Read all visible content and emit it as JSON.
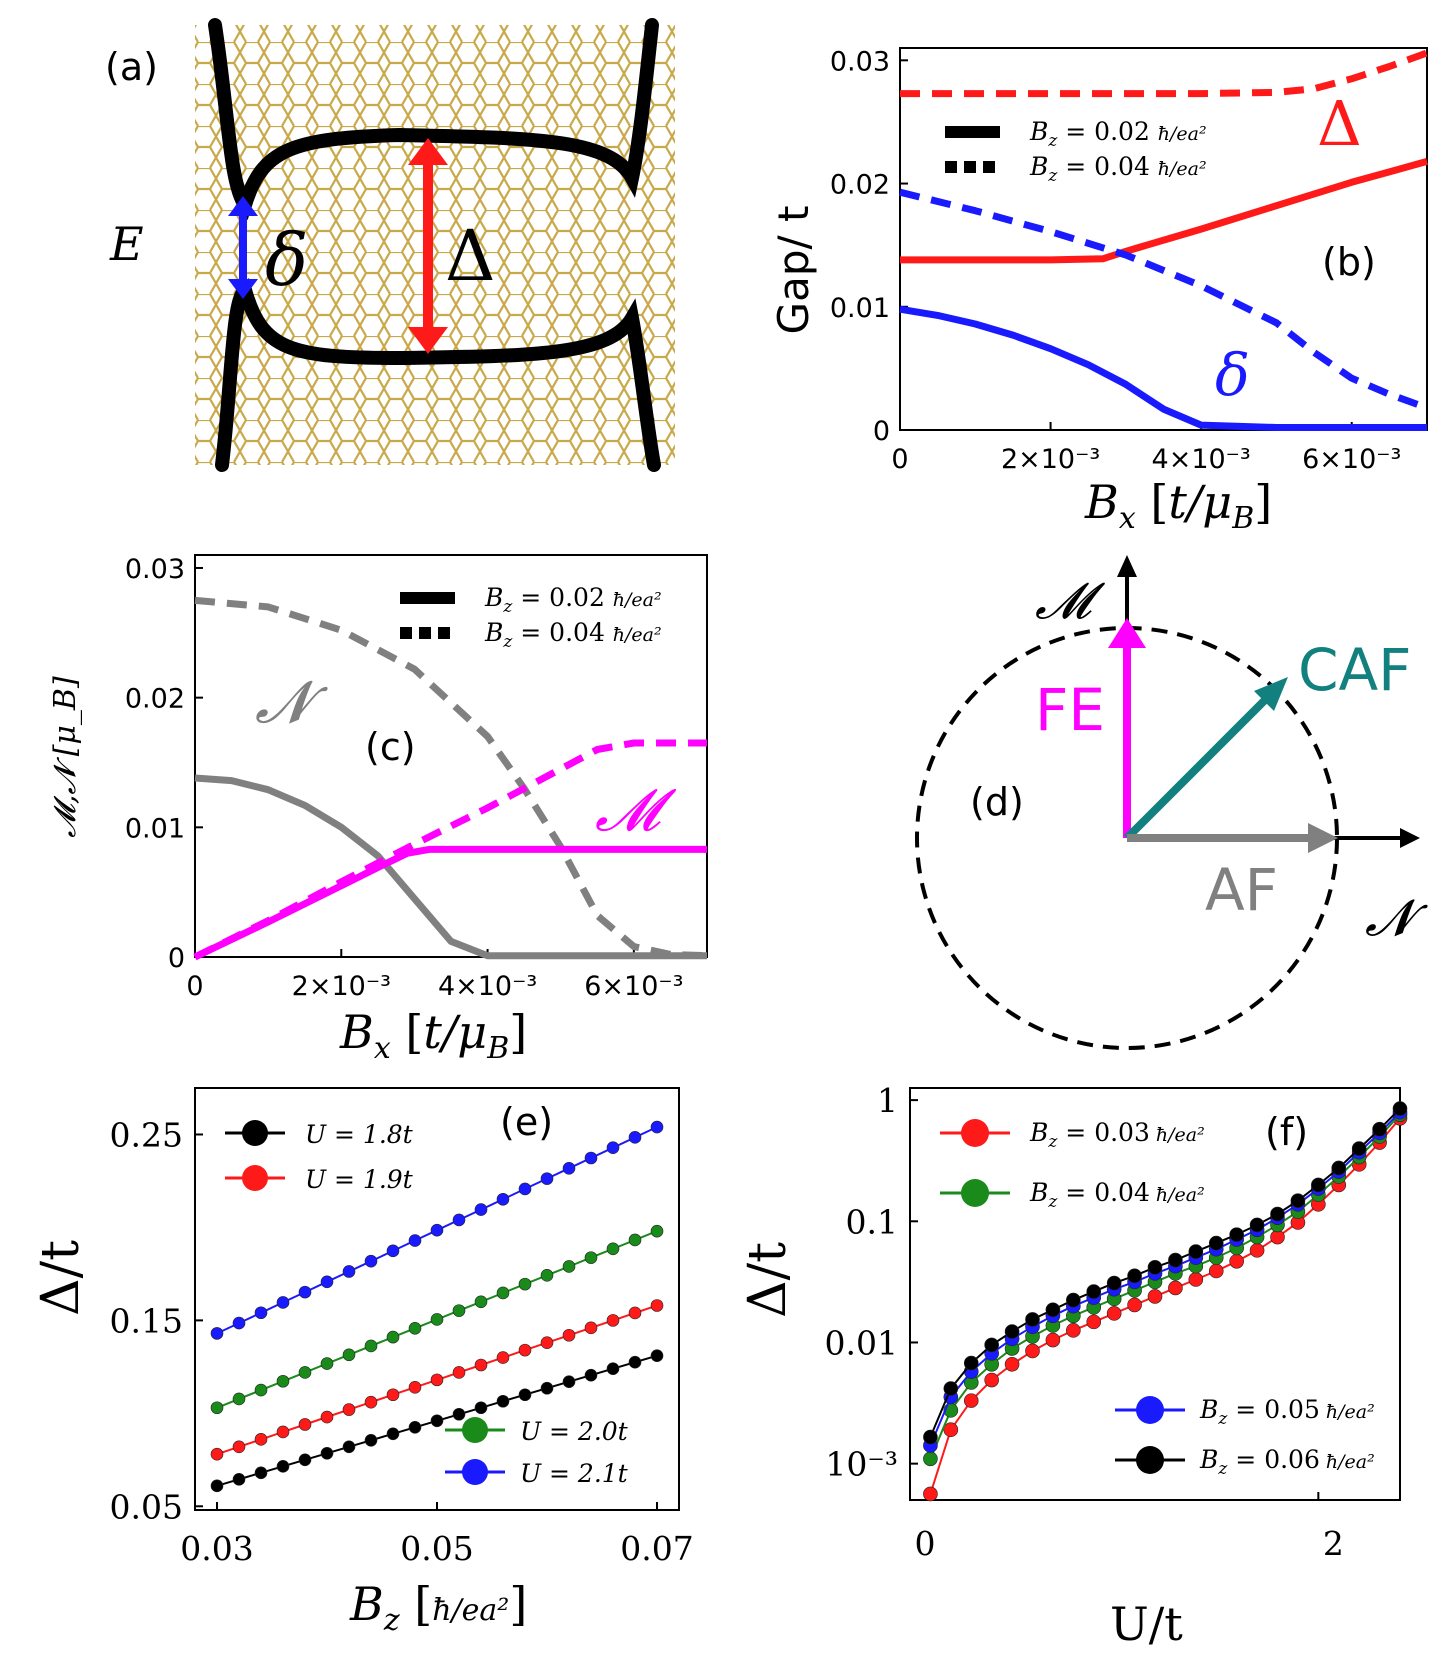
{
  "colors": {
    "red": "#ff1a1a",
    "blue": "#1a1aff",
    "gray": "#808080",
    "magenta": "#ff00ff",
    "green": "#1a8a1a",
    "teal": "#138080",
    "black": "#000000",
    "lattice": "#c9a84a"
  },
  "panel_labels": {
    "a": "(a)",
    "b": "(b)",
    "c": "(c)",
    "d": "(d)",
    "e": "(e)",
    "f": "(f)"
  },
  "chart_data": [
    {
      "panel": "(a)",
      "type": "diagram",
      "ylabel": "E",
      "annotations": [
        "δ",
        "Δ"
      ]
    },
    {
      "panel": "(b)",
      "type": "line",
      "xlabel": "B_x [t/μ_B]",
      "ylabel": "Gap/ t",
      "xlim": [
        0,
        0.007
      ],
      "ylim": [
        0,
        0.031
      ],
      "xticks": [
        "0",
        "2×10⁻³",
        "4×10⁻³",
        "6×10⁻³"
      ],
      "yticks": [
        "0",
        "0.01",
        "0.02",
        "0.03"
      ],
      "legend": [
        "B_z = 0.02 ħ/ea²",
        "B_z = 0.04 ħ/ea²"
      ],
      "annotations": [
        "Δ",
        "δ"
      ],
      "series": [
        {
          "name": "Δ, B_z=0.02",
          "style": "solid",
          "color": "red",
          "x": [
            0,
            0.001,
            0.002,
            0.0027,
            0.003,
            0.004,
            0.005,
            0.006,
            0.007
          ],
          "y": [
            0.0138,
            0.0138,
            0.0138,
            0.0139,
            0.0145,
            0.0163,
            0.0182,
            0.0201,
            0.0218
          ]
        },
        {
          "name": "Δ, B_z=0.04",
          "style": "dashed",
          "color": "red",
          "x": [
            0,
            0.001,
            0.002,
            0.003,
            0.004,
            0.005,
            0.0055,
            0.006,
            0.0065,
            0.007
          ],
          "y": [
            0.0273,
            0.0273,
            0.0273,
            0.0273,
            0.0273,
            0.0274,
            0.0277,
            0.0285,
            0.0295,
            0.0306
          ]
        },
        {
          "name": "δ, B_z=0.02",
          "style": "solid",
          "color": "blue",
          "x": [
            0,
            0.0005,
            0.001,
            0.0015,
            0.002,
            0.0025,
            0.003,
            0.0035,
            0.004,
            0.005,
            0.006,
            0.007
          ],
          "y": [
            0.0098,
            0.0093,
            0.0086,
            0.0077,
            0.0066,
            0.0053,
            0.0037,
            0.0017,
            0.0004,
            0.0002,
            0.0002,
            0.0002
          ]
        },
        {
          "name": "δ, B_z=0.04",
          "style": "dashed",
          "color": "blue",
          "x": [
            0,
            0.001,
            0.002,
            0.003,
            0.004,
            0.005,
            0.0055,
            0.006,
            0.0065,
            0.007
          ],
          "y": [
            0.0193,
            0.0178,
            0.0161,
            0.0142,
            0.0117,
            0.0087,
            0.0063,
            0.0042,
            0.0029,
            0.0018
          ]
        }
      ]
    },
    {
      "panel": "(c)",
      "type": "line",
      "xlabel": "B_x [t/μ_B]",
      "ylabel": "𝓜,𝓝 [μ_B]",
      "xlim": [
        0,
        0.007
      ],
      "ylim": [
        0,
        0.031
      ],
      "xticks": [
        "0",
        "2×10⁻³",
        "4×10⁻³",
        "6×10⁻³"
      ],
      "yticks": [
        "0",
        "0.01",
        "0.02",
        "0.03"
      ],
      "legend": [
        "B_z = 0.02 ħ/ea²",
        "B_z = 0.04 ħ/ea²"
      ],
      "annotations": [
        "𝓝",
        "𝓜"
      ],
      "series": [
        {
          "name": "N, B_z=0.02",
          "style": "solid",
          "color": "gray",
          "x": [
            0,
            0.0005,
            0.001,
            0.0015,
            0.002,
            0.0025,
            0.003,
            0.0035,
            0.004,
            0.005,
            0.006,
            0.007
          ],
          "y": [
            0.0138,
            0.0136,
            0.0129,
            0.0117,
            0.01,
            0.0078,
            0.0045,
            0.0012,
            0.0001,
            0.0001,
            0.0001,
            0.0001
          ]
        },
        {
          "name": "N, B_z=0.04",
          "style": "dashed",
          "color": "gray",
          "x": [
            0,
            0.001,
            0.002,
            0.003,
            0.004,
            0.0045,
            0.005,
            0.0055,
            0.006,
            0.0065,
            0.007
          ],
          "y": [
            0.0275,
            0.027,
            0.0252,
            0.0222,
            0.017,
            0.013,
            0.0085,
            0.0032,
            0.0008,
            0.0002,
            0.0001
          ]
        },
        {
          "name": "M, B_z=0.02",
          "style": "solid",
          "color": "magenta",
          "x": [
            0,
            0.001,
            0.002,
            0.0025,
            0.0029,
            0.0032,
            0.004,
            0.005,
            0.006,
            0.007
          ],
          "y": [
            0,
            0.0027,
            0.0055,
            0.0069,
            0.008,
            0.0083,
            0.0083,
            0.0083,
            0.0083,
            0.0083
          ]
        },
        {
          "name": "M, B_z=0.04",
          "style": "dashed",
          "color": "magenta",
          "x": [
            0,
            0.001,
            0.002,
            0.003,
            0.004,
            0.005,
            0.0055,
            0.006,
            0.0065,
            0.007
          ],
          "y": [
            0,
            0.0028,
            0.0058,
            0.0087,
            0.0115,
            0.0145,
            0.016,
            0.0165,
            0.0165,
            0.0165
          ]
        }
      ]
    },
    {
      "panel": "(d)",
      "type": "diagram",
      "axes": [
        "𝓜",
        "𝓝"
      ],
      "vectors": [
        "FE",
        "CAF",
        "AF"
      ]
    },
    {
      "panel": "(e)",
      "type": "line",
      "xlabel": "B_z [ħ/ea²]",
      "ylabel": "Δ/t",
      "xlim": [
        0.028,
        0.072
      ],
      "ylim": [
        0.048,
        0.275
      ],
      "xticks": [
        "0.03",
        "0.05",
        "0.07"
      ],
      "yticks": [
        "0.05",
        "0.15",
        "0.25"
      ],
      "series": [
        {
          "name": "U = 1.8t",
          "color": "black",
          "x_start": 0.03,
          "x_end": 0.07,
          "n": 21,
          "y_start": 0.061,
          "y_end": 0.131
        },
        {
          "name": "U = 1.9t",
          "color": "red",
          "x_start": 0.03,
          "x_end": 0.07,
          "n": 21,
          "y_start": 0.078,
          "y_end": 0.158
        },
        {
          "name": "U = 2.0t",
          "color": "green",
          "x_start": 0.03,
          "x_end": 0.07,
          "n": 21,
          "y_start": 0.103,
          "y_end": 0.198
        },
        {
          "name": "U = 2.1t",
          "color": "blue",
          "x_start": 0.03,
          "x_end": 0.07,
          "n": 21,
          "y_start": 0.143,
          "y_end": 0.254
        }
      ]
    },
    {
      "panel": "(f)",
      "type": "line",
      "scale": "log-y",
      "xlabel": "U/t",
      "ylabel": "Δ/t",
      "xlim": [
        0,
        2.4
      ],
      "ylim_log10": [
        -3.3,
        0.1
      ],
      "xticks": [
        "0",
        "2"
      ],
      "yticks": [
        "10⁻³",
        "0.01",
        "0.1",
        "1"
      ],
      "series": [
        {
          "name": "B_z = 0.03 ħ/ea²",
          "color": "red",
          "x": [
            0.1,
            0.2,
            0.3,
            0.4,
            0.5,
            0.6,
            0.7,
            0.8,
            0.9,
            1.0,
            1.1,
            1.2,
            1.3,
            1.4,
            1.5,
            1.6,
            1.7,
            1.8,
            1.9,
            2.0,
            2.1,
            2.2,
            2.3,
            2.4
          ],
          "log10y": [
            -3.25,
            -2.72,
            -2.48,
            -2.31,
            -2.18,
            -2.07,
            -1.98,
            -1.9,
            -1.83,
            -1.76,
            -1.69,
            -1.62,
            -1.55,
            -1.48,
            -1.41,
            -1.33,
            -1.24,
            -1.13,
            -1.01,
            -0.86,
            -0.7,
            -0.53,
            -0.35,
            -0.15
          ]
        },
        {
          "name": "B_z = 0.04 ħ/ea²",
          "color": "green",
          "x": [
            0.1,
            0.2,
            0.3,
            0.4,
            0.5,
            0.6,
            0.7,
            0.8,
            0.9,
            1.0,
            1.1,
            1.2,
            1.3,
            1.4,
            1.5,
            1.6,
            1.7,
            1.8,
            1.9,
            2.0,
            2.1,
            2.2,
            2.3,
            2.4
          ],
          "log10y": [
            -2.96,
            -2.56,
            -2.33,
            -2.18,
            -2.05,
            -1.95,
            -1.86,
            -1.78,
            -1.71,
            -1.64,
            -1.57,
            -1.5,
            -1.43,
            -1.37,
            -1.3,
            -1.22,
            -1.13,
            -1.03,
            -0.92,
            -0.78,
            -0.63,
            -0.47,
            -0.3,
            -0.12
          ]
        },
        {
          "name": "B_z = 0.05 ħ/ea²",
          "color": "blue",
          "x": [
            0.1,
            0.2,
            0.3,
            0.4,
            0.5,
            0.6,
            0.7,
            0.8,
            0.9,
            1.0,
            1.1,
            1.2,
            1.3,
            1.4,
            1.5,
            1.6,
            1.7,
            1.8,
            1.9,
            2.0,
            2.1,
            2.2,
            2.3,
            2.4
          ],
          "log10y": [
            -2.85,
            -2.45,
            -2.24,
            -2.09,
            -1.97,
            -1.87,
            -1.78,
            -1.7,
            -1.63,
            -1.56,
            -1.5,
            -1.43,
            -1.37,
            -1.3,
            -1.23,
            -1.15,
            -1.07,
            -0.97,
            -0.86,
            -0.73,
            -0.59,
            -0.43,
            -0.27,
            -0.1
          ]
        },
        {
          "name": "B_z = 0.06 ħ/ea²",
          "color": "black",
          "x": [
            0.1,
            0.2,
            0.3,
            0.4,
            0.5,
            0.6,
            0.7,
            0.8,
            0.9,
            1.0,
            1.1,
            1.2,
            1.3,
            1.4,
            1.5,
            1.6,
            1.7,
            1.8,
            1.9,
            2.0,
            2.1,
            2.2,
            2.3,
            2.4
          ],
          "log10y": [
            -2.78,
            -2.38,
            -2.17,
            -2.02,
            -1.91,
            -1.81,
            -1.73,
            -1.65,
            -1.58,
            -1.51,
            -1.45,
            -1.38,
            -1.32,
            -1.25,
            -1.18,
            -1.11,
            -1.03,
            -0.94,
            -0.83,
            -0.7,
            -0.56,
            -0.4,
            -0.24,
            -0.07
          ]
        }
      ]
    }
  ],
  "legend_text": {
    "bz002": "B",
    "bz004": "B",
    "u18": "U = 1.8t",
    "u19": "U = 1.9t",
    "u20": "U = 2.0t",
    "u21": "U = 2.1t",
    "f003": "0.03",
    "f004": "0.04",
    "f005": "0.05",
    "f006": "0.06"
  }
}
